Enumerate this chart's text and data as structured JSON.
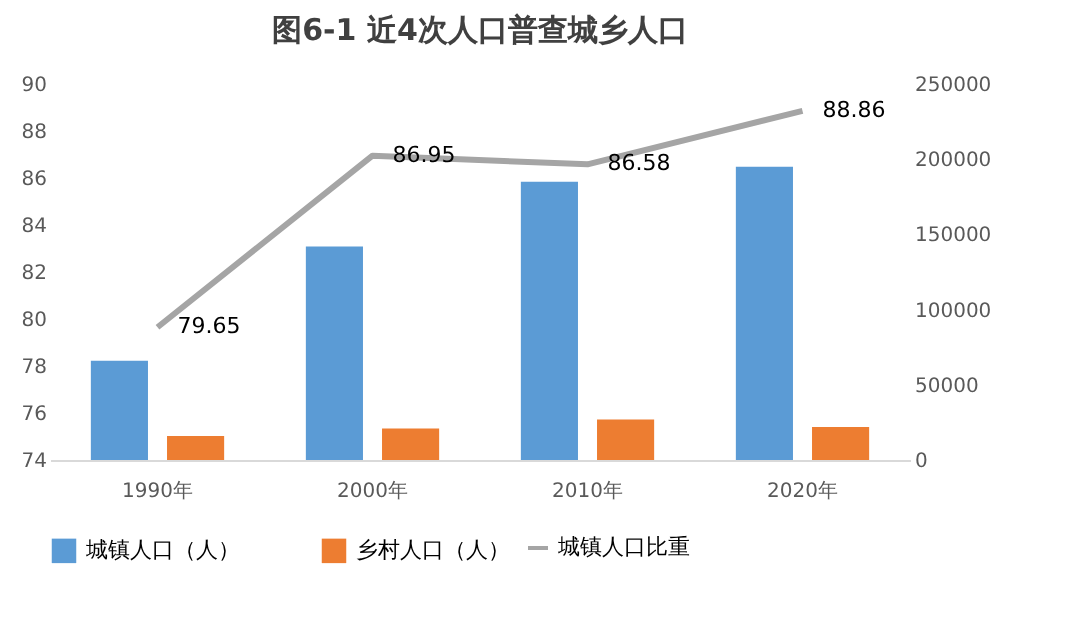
{
  "chart_data": {
    "type": "bar",
    "title": "图6-1 近4次人口普查城乡人口",
    "categories": [
      "1990年",
      "2000年",
      "2010年",
      "2020年"
    ],
    "series": [
      {
        "name": "城镇人口（人）",
        "color": "#5b9bd5",
        "axis": "y2",
        "values": [
          66000,
          142000,
          185000,
          195000
        ]
      },
      {
        "name": "乡村人口（人）",
        "color": "#ed7d31",
        "axis": "y2",
        "values": [
          16000,
          21000,
          27000,
          22000
        ]
      },
      {
        "name": "城镇人口比重",
        "type": "line",
        "color": "#a5a5a5",
        "axis": "y",
        "values": [
          79.65,
          86.95,
          86.58,
          88.86
        ],
        "value_labels": [
          "79.65",
          "86.95",
          "86.58",
          "88.86"
        ]
      }
    ],
    "ylim": [
      74,
      90
    ],
    "yticks": [
      74,
      76,
      78,
      80,
      82,
      84,
      86,
      88,
      90
    ],
    "y2lim": [
      0,
      250000
    ],
    "y2ticks": [
      0,
      50000,
      100000,
      150000,
      200000,
      250000
    ],
    "grid": false,
    "legend": "bottom"
  }
}
